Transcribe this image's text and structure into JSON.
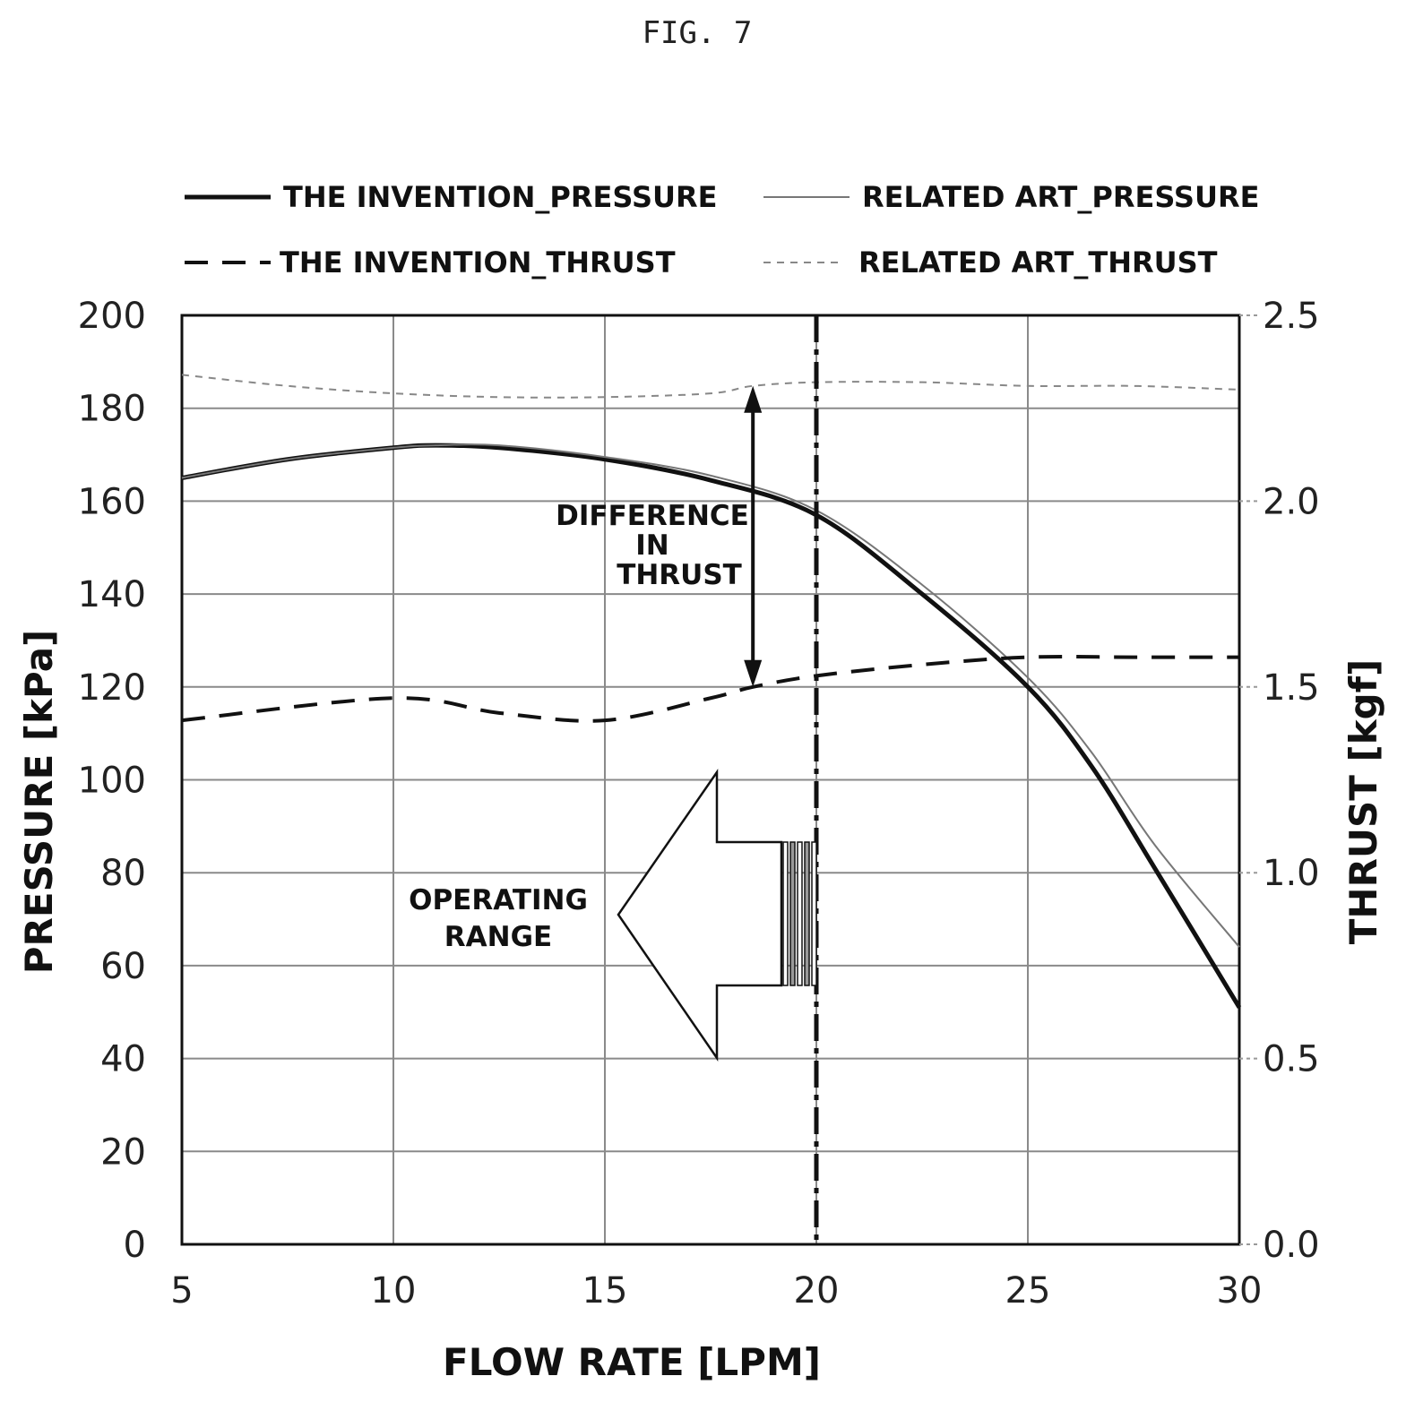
{
  "figure_label": "FIG. 7",
  "chart_data": {
    "type": "line",
    "xlabel": "FLOW RATE [LPM]",
    "ylabel": "PRESSURE [kPa]",
    "y2label": "THRUST [kgf]",
    "xlim": [
      5,
      30
    ],
    "ylim": [
      0,
      200
    ],
    "y2lim": [
      0.0,
      2.5
    ],
    "x_ticks": [
      "5",
      "10",
      "15",
      "20",
      "25",
      "30"
    ],
    "y_ticks": [
      "0",
      "20",
      "40",
      "60",
      "80",
      "100",
      "120",
      "140",
      "160",
      "180",
      "200"
    ],
    "y2_ticks": [
      "0.0",
      "0.5",
      "1.0",
      "1.5",
      "2.0",
      "2.5"
    ],
    "grid": true,
    "legend_position": "top",
    "series": [
      {
        "name": "THE INVENTION_PRESSURE",
        "axis": "left",
        "style": "solid-thick",
        "x": [
          5,
          7.5,
          10,
          11,
          12.5,
          15,
          17.5,
          20,
          22.5,
          25,
          26.5,
          28,
          30
        ],
        "y": [
          165,
          169,
          171.5,
          172,
          171.5,
          169,
          164.5,
          157,
          140,
          120,
          103,
          81,
          51
        ]
      },
      {
        "name": "RELATED ART_PRESSURE",
        "axis": "left",
        "style": "solid-thin",
        "x": [
          5,
          7.5,
          10,
          11,
          12.5,
          15,
          17.5,
          20,
          22.5,
          25,
          26.5,
          28,
          30
        ],
        "y": [
          165,
          169,
          171.5,
          172,
          172,
          169.5,
          165.5,
          158,
          142,
          122,
          106,
          86,
          64
        ]
      },
      {
        "name": "THE INVENTION_THRUST",
        "axis": "right",
        "style": "dashed-thick",
        "x": [
          5,
          10,
          12.5,
          15,
          17.5,
          18.5,
          20,
          22.5,
          25,
          27.5,
          30
        ],
        "y": [
          1.41,
          1.47,
          1.43,
          1.41,
          1.47,
          1.5,
          1.53,
          1.56,
          1.58,
          1.58,
          1.58
        ]
      },
      {
        "name": "RELATED ART_THRUST",
        "axis": "right",
        "style": "dashed-thin",
        "x": [
          5,
          7.5,
          10,
          12.5,
          15,
          17.5,
          18.5,
          20,
          22.5,
          25,
          27.5,
          30
        ],
        "y": [
          2.34,
          2.31,
          2.29,
          2.28,
          2.28,
          2.29,
          2.31,
          2.32,
          2.32,
          2.31,
          2.31,
          2.3
        ]
      }
    ],
    "annotations": {
      "difference": {
        "lines": [
          "DIFFERENCE",
          "IN",
          "THRUST"
        ],
        "x": 18.5,
        "y2_from": 2.31,
        "y2_to": 1.5
      },
      "operating_range": {
        "lines": [
          "OPERATING",
          "RANGE"
        ],
        "x_limit": 20
      }
    }
  }
}
